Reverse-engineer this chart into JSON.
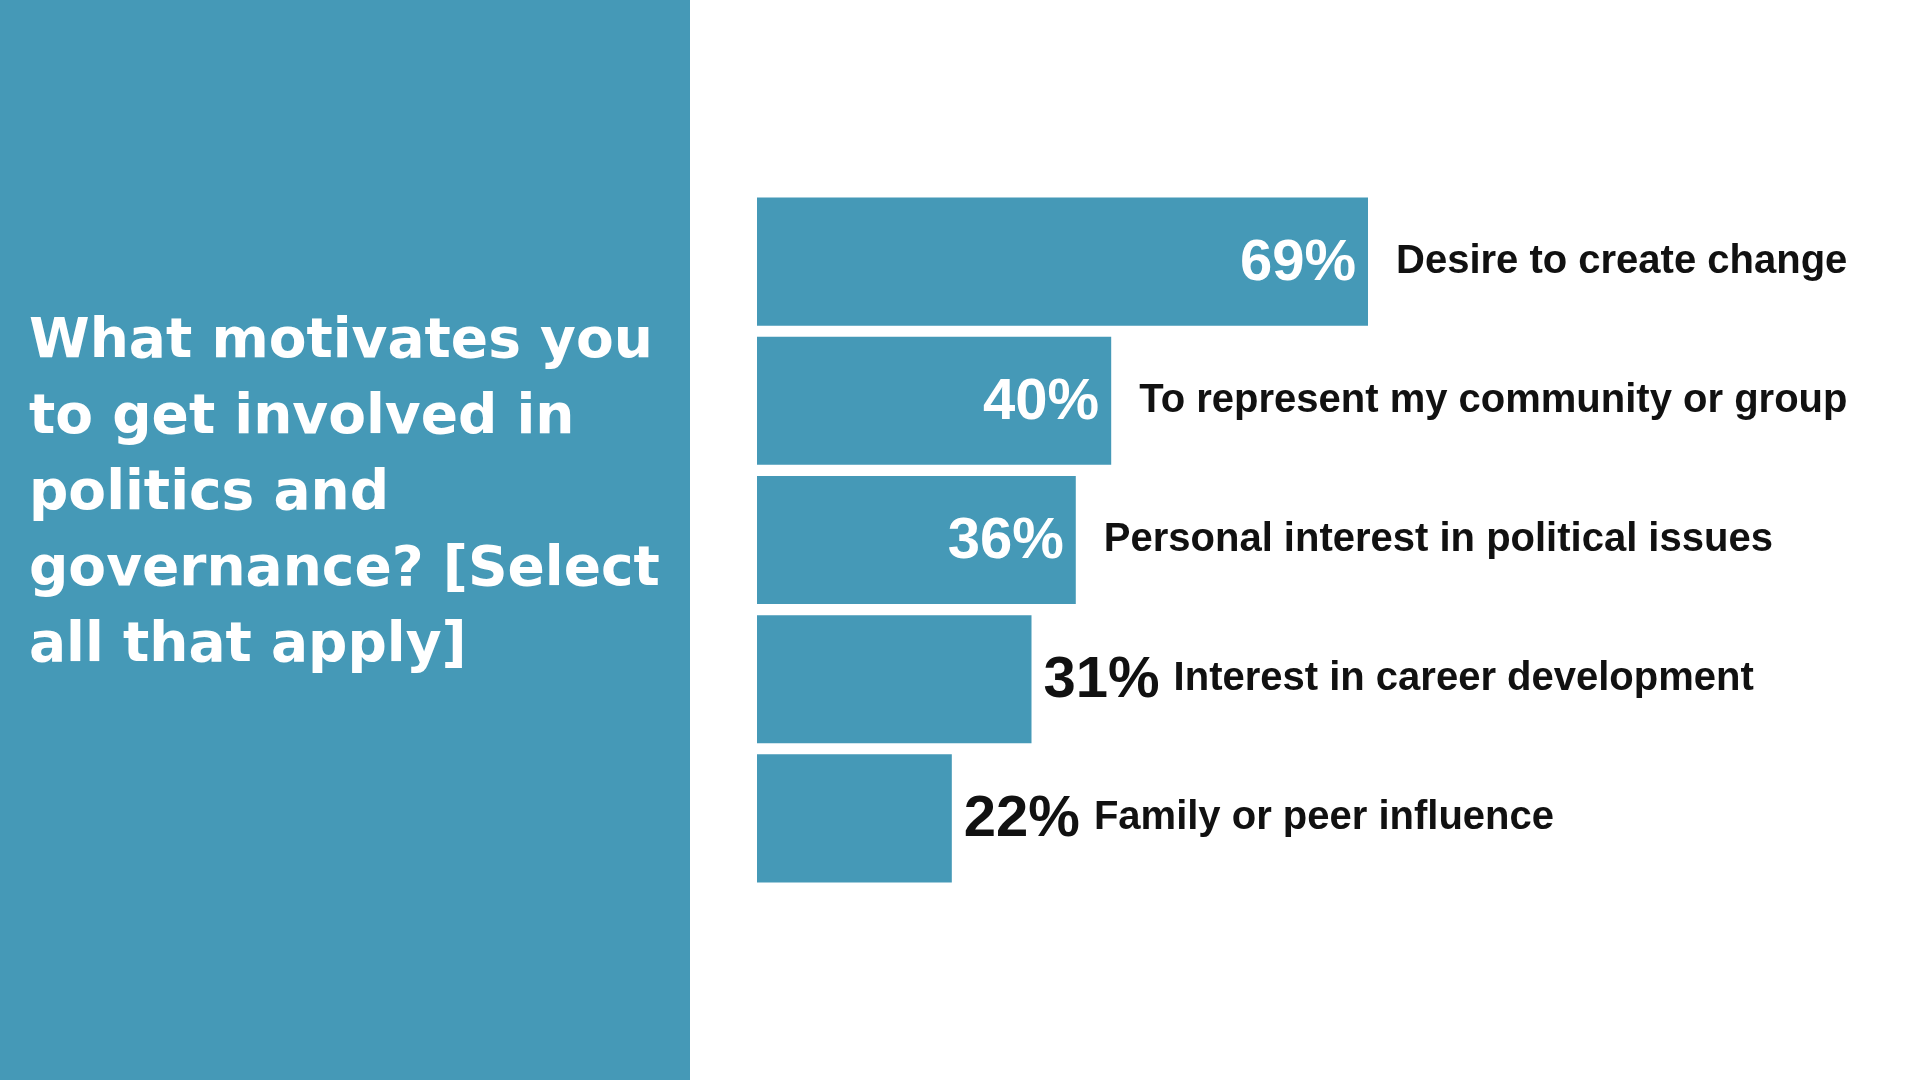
{
  "chart_data": {
    "type": "bar",
    "orientation": "horizontal",
    "title": "What motivates you to get involved in politics and governance? [Select all that apply]",
    "categories": [
      "Desire to create change",
      "To represent my community or group",
      "Personal interest in political issues",
      "Interest in career development",
      "Family or peer influence"
    ],
    "values": [
      69,
      40,
      36,
      31,
      22
    ],
    "value_labels": [
      "69%",
      "40%",
      "36%",
      "31%",
      "22%"
    ],
    "color": "#4599b7",
    "tick_labels": false
  }
}
